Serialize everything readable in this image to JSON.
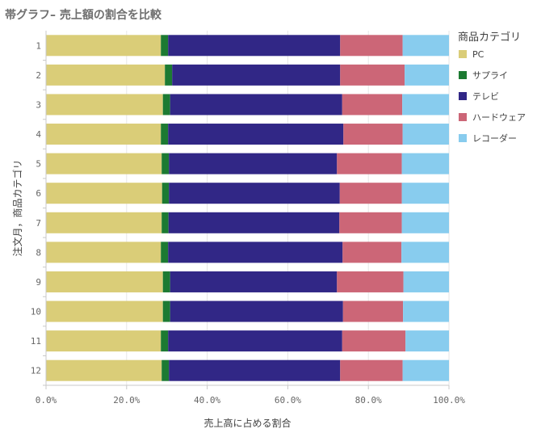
{
  "chart_data": {
    "type": "bar",
    "orientation": "horizontal",
    "stacked": "percent",
    "title": "帯グラフ– 売上額の割合を比較",
    "xlabel": "売上高に占める割合",
    "ylabel": "注文月，商品カテゴリ",
    "categories": [
      "1",
      "2",
      "3",
      "4",
      "5",
      "6",
      "7",
      "8",
      "9",
      "10",
      "11",
      "12"
    ],
    "xlim": [
      0,
      100
    ],
    "x_ticks": [
      "0.0%",
      "20.0%",
      "40.0%",
      "60.0%",
      "80.0%",
      "100.0%"
    ],
    "legend_title": "商品カテゴリ",
    "legend_position": "top-right",
    "series": [
      {
        "name": "PC",
        "color": "#dacd78",
        "values": [
          28.5,
          29.5,
          29.0,
          28.5,
          28.7,
          28.8,
          28.7,
          28.5,
          29.0,
          29.0,
          28.5,
          28.7
        ]
      },
      {
        "name": "サプライ",
        "color": "#1c7a32",
        "values": [
          1.8,
          1.8,
          1.8,
          1.8,
          1.8,
          1.7,
          1.7,
          1.8,
          1.8,
          1.8,
          1.8,
          1.8
        ]
      },
      {
        "name": "テレビ",
        "color": "#312786",
        "values": [
          42.7,
          41.7,
          42.7,
          43.5,
          41.7,
          42.4,
          42.4,
          43.3,
          41.4,
          42.9,
          43.2,
          42.5
        ]
      },
      {
        "name": "ハードウェア",
        "color": "#cc6677",
        "values": [
          15.5,
          16.0,
          14.9,
          14.7,
          16.1,
          15.4,
          15.5,
          14.6,
          16.5,
          14.9,
          15.7,
          15.5
        ]
      },
      {
        "name": "レコーダー",
        "color": "#88ccee",
        "values": [
          11.5,
          11.0,
          11.6,
          11.5,
          11.7,
          11.7,
          11.7,
          11.8,
          11.3,
          11.4,
          10.8,
          11.5
        ]
      }
    ]
  }
}
